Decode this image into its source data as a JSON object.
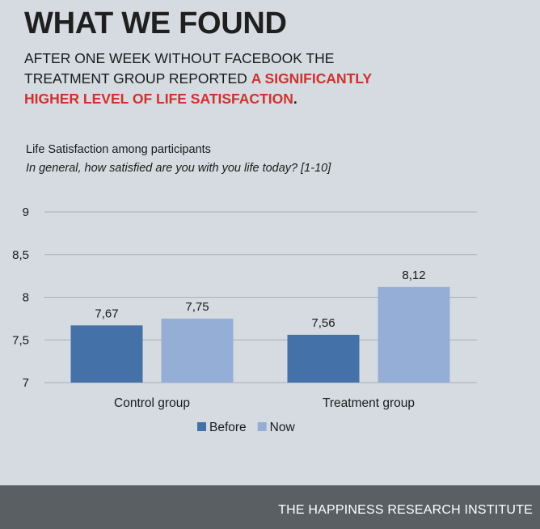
{
  "header": {
    "headline": "WHAT WE FOUND",
    "lead_line1": "AFTER ONE WEEK WITHOUT FACEBOOK THE",
    "lead_line2": "TREATMENT GROUP REPORTED ",
    "lead_accent_part1": "A SIGNIFICANTLY",
    "lead_accent_part2": "HIGHER LEVEL OF LIFE SATISFACTION",
    "lead_end": ".",
    "accent_color": "#d0312d"
  },
  "chart_data": {
    "type": "bar",
    "title": "Life Satisfaction among participants",
    "subtitle": "In general, how satisfied are you with you life today? [1-10]",
    "categories": [
      "Control group",
      "Treatment group"
    ],
    "series": [
      {
        "name": "Before",
        "values": [
          7.67,
          7.56
        ],
        "labels": [
          "7,67",
          "7,56"
        ],
        "color": "#4472a8"
      },
      {
        "name": "Now",
        "values": [
          7.75,
          8.12
        ],
        "labels": [
          "7,75",
          "8,12"
        ],
        "color": "#95aed6"
      }
    ],
    "ylim": [
      7,
      9
    ],
    "yticks": [
      7,
      7.5,
      8,
      8.5,
      9
    ],
    "ytick_labels": [
      "7",
      "7,5",
      "8",
      "8,5",
      "9"
    ],
    "grid": true,
    "legend_position": "bottom"
  },
  "footer": {
    "text": "THE HAPPINESS RESEARCH INSTITUTE"
  }
}
